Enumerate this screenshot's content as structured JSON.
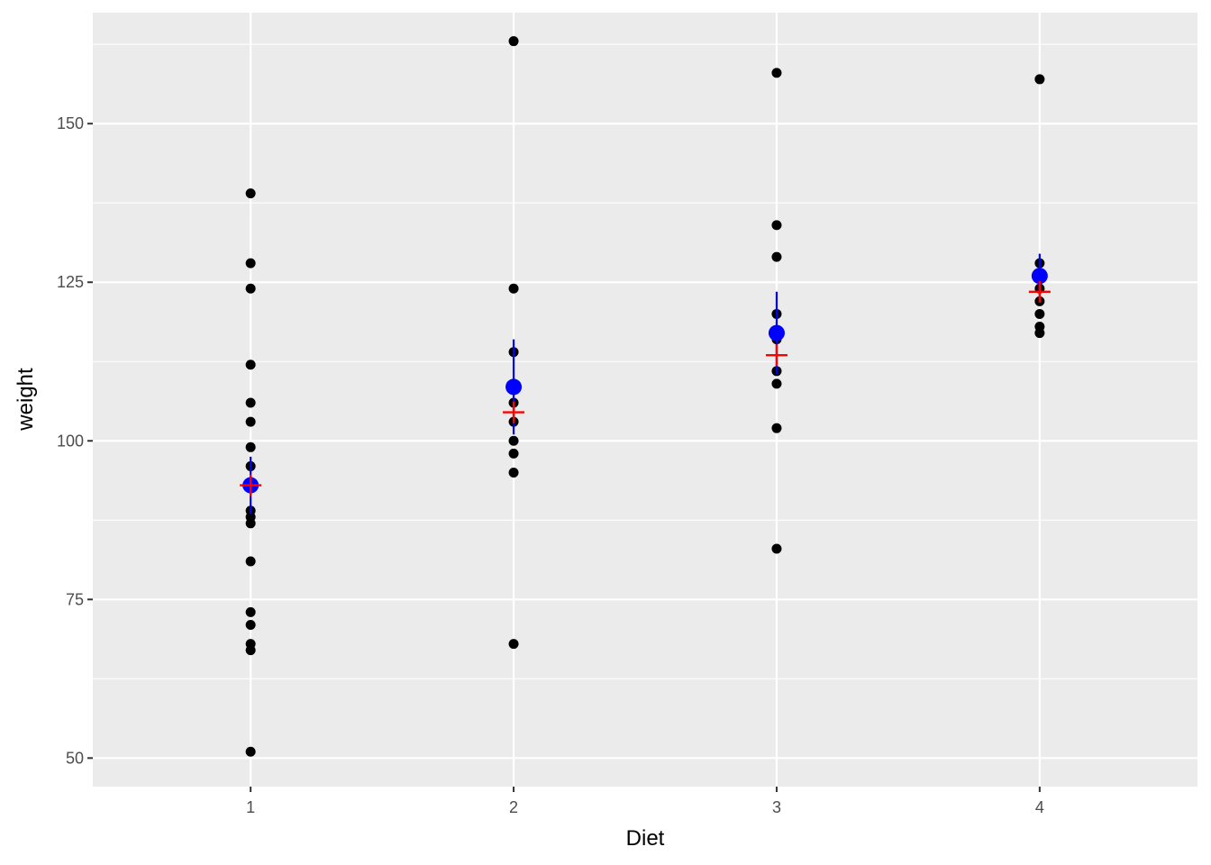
{
  "chart_data": {
    "type": "scatter",
    "title": "",
    "xlabel": "Diet",
    "ylabel": "weight",
    "categories": [
      "1",
      "2",
      "3",
      "4"
    ],
    "xlim": [
      0.4,
      4.6
    ],
    "ylim": [
      45.5,
      167.5
    ],
    "y_ticks": [
      50,
      75,
      100,
      125,
      150
    ],
    "y_minor_ticks": [
      62.5,
      87.5,
      112.5,
      137.5,
      162.5
    ],
    "grid": true,
    "legend": "none",
    "points": [
      {
        "diet": 1,
        "values": [
          139,
          128,
          124,
          112,
          106,
          103,
          99,
          96,
          89,
          88,
          87,
          81,
          73,
          71,
          68,
          67,
          51
        ]
      },
      {
        "diet": 2,
        "values": [
          163,
          124,
          114,
          106,
          103,
          100,
          98,
          95,
          68
        ]
      },
      {
        "diet": 3,
        "values": [
          158,
          134,
          129,
          120,
          116,
          111,
          109,
          102,
          83
        ]
      },
      {
        "diet": 4,
        "values": [
          157,
          128,
          126,
          124,
          122,
          120,
          118,
          117
        ]
      }
    ],
    "mean_ci": [
      {
        "diet": 1,
        "mean": 93,
        "lower": 88.5,
        "upper": 97.5
      },
      {
        "diet": 2,
        "mean": 108.5,
        "lower": 101,
        "upper": 116
      },
      {
        "diet": 3,
        "mean": 117,
        "lower": 110.5,
        "upper": 123.5
      },
      {
        "diet": 4,
        "mean": 126,
        "lower": 122.5,
        "upper": 129.5
      }
    ],
    "medians": [
      {
        "diet": 1,
        "value": 93
      },
      {
        "diet": 2,
        "value": 104.5
      },
      {
        "diet": 3,
        "value": 113.5
      },
      {
        "diet": 4,
        "value": 123.5
      }
    ],
    "colors": {
      "panel": "#ebebeb",
      "grid": "#ffffff",
      "points": "#000000",
      "mean": "#0000ff",
      "median": "#ff0000",
      "tick_text": "#4d4d4d",
      "tick_mark": "#333333"
    }
  }
}
